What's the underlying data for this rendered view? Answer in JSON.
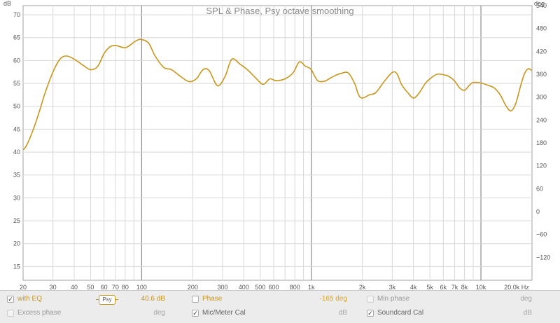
{
  "chart_data": {
    "type": "line",
    "title": "SPL & Phase, Psy octave smoothing",
    "xlabel": "",
    "ylabel": "dB",
    "y2label": "deg",
    "xscale": "log",
    "xunit": "Hz",
    "xlim": [
      20,
      20000
    ],
    "ylim": [
      12,
      72
    ],
    "y2lim": [
      -180,
      540
    ],
    "grid": true,
    "line_color": "#c8961e",
    "yticks": [
      15,
      20,
      25,
      30,
      35,
      40,
      45,
      50,
      55,
      60,
      65,
      70
    ],
    "y2ticks": [
      -120,
      -60,
      0,
      60,
      120,
      180,
      240,
      300,
      360,
      420,
      480,
      540
    ],
    "y2tick_labels": [
      "−120",
      "−60",
      "0",
      "60",
      "120",
      "180",
      "240",
      "300",
      "360",
      "420",
      "480",
      "540"
    ],
    "xticks": [
      20,
      30,
      40,
      50,
      60,
      70,
      80,
      100,
      200,
      300,
      400,
      500,
      600,
      800,
      1000,
      2000,
      3000,
      4000,
      5000,
      6000,
      7000,
      8000,
      10000,
      20000
    ],
    "xtick_labels": [
      "20",
      "30",
      "40",
      "50",
      "60",
      "70",
      "80",
      "100",
      "200",
      "300",
      "400",
      "500",
      "600",
      "800",
      "1k",
      "2k",
      "3k",
      "4k",
      "5k",
      "6k",
      "7k",
      "8k",
      "10k",
      "20.0k Hz"
    ],
    "series": [
      {
        "x": [
          20,
          21,
          23,
          25,
          27,
          30,
          33,
          36,
          40,
          45,
          50,
          55,
          60,
          65,
          70,
          75,
          80,
          85,
          90,
          95,
          100,
          110,
          120,
          135,
          150,
          170,
          190,
          210,
          230,
          250,
          280,
          310,
          340,
          380,
          420,
          470,
          520,
          570,
          620,
          700,
          780,
          850,
          920,
          960,
          1000,
          1050,
          1100,
          1200,
          1300,
          1400,
          1500,
          1650,
          1800,
          1900,
          2000,
          2200,
          2400,
          2700,
          3000,
          3200,
          3400,
          3700,
          4000,
          4300,
          4700,
          5000,
          5500,
          6000,
          6500,
          7000,
          7500,
          8000,
          8500,
          9000,
          10000,
          11000,
          12000,
          13000,
          14000,
          15000,
          16000,
          17000,
          18000,
          19000,
          20000
        ],
        "y": [
          40.5,
          41.5,
          45,
          49,
          53,
          57.5,
          60.3,
          61,
          60.3,
          59,
          58,
          58.7,
          61.5,
          63,
          63.3,
          63,
          62.8,
          63.3,
          64,
          64.5,
          64.6,
          63.8,
          61,
          58.5,
          58,
          56.5,
          55.4,
          56,
          58,
          57.8,
          54.5,
          56.5,
          60.3,
          59.2,
          58,
          56.2,
          54.8,
          56,
          55.6,
          56,
          57.3,
          59.7,
          58.8,
          58.5,
          58,
          56.5,
          55.5,
          55.5,
          56.2,
          56.8,
          57.2,
          57.3,
          55,
          52.5,
          51.8,
          52.5,
          53,
          55.5,
          57.4,
          57.1,
          54.8,
          53,
          51.8,
          52.8,
          55,
          56,
          57,
          56.9,
          56.5,
          55.5,
          54,
          53.5,
          54.5,
          55.2,
          55.1,
          54.6,
          54,
          52.5,
          50.2,
          49,
          50.5,
          54,
          57,
          58.2,
          57.8
        ]
      }
    ]
  },
  "legend": {
    "with_eq": {
      "label": "with EQ",
      "checked": true
    },
    "smoothing": {
      "label": "Psy"
    },
    "with_eq_value": "40.6 dB",
    "phase": {
      "label": "Phase",
      "checked": false,
      "value": "-165 deg"
    },
    "min_phase": {
      "label": "Min phase",
      "checked": false,
      "unit": "deg"
    },
    "excess_phase": {
      "label": "Excess phase",
      "checked": false,
      "unit": "deg"
    },
    "mic_cal": {
      "label": "Mic/Meter Cal",
      "checked": true,
      "unit": "dB"
    },
    "soundcard_cal": {
      "label": "Soundcard Cal",
      "checked": true,
      "unit": "dB"
    },
    "check_mark": "✓"
  }
}
